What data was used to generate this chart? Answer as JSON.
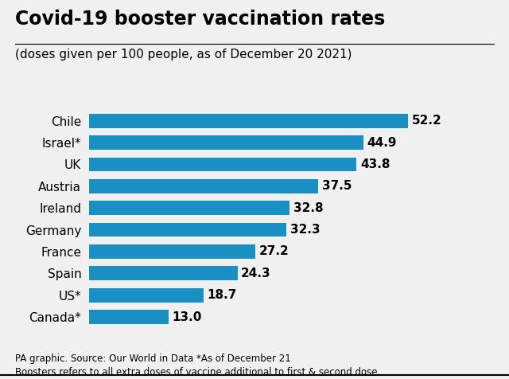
{
  "title": "Covid-19 booster vaccination rates",
  "subtitle": "(doses given per 100 people, as of December 20 2021)",
  "footer_line1": "PA graphic. Source: Our World in Data *As of December 21",
  "footer_line2": "Boosters refers to all extra doses of vaccine additional to first & second dose",
  "categories": [
    "Chile",
    "Israel*",
    "UK",
    "Austria",
    "Ireland",
    "Germany",
    "France",
    "Spain",
    "US*",
    "Canada*"
  ],
  "values": [
    52.2,
    44.9,
    43.8,
    37.5,
    32.8,
    32.3,
    27.2,
    24.3,
    18.7,
    13.0
  ],
  "bar_color": "#1a8fc4",
  "background_color": "#f0f0f0",
  "title_fontsize": 17,
  "subtitle_fontsize": 11,
  "label_fontsize": 11,
  "value_fontsize": 11,
  "footer_fontsize": 8.5,
  "xlim": [
    0,
    60
  ]
}
